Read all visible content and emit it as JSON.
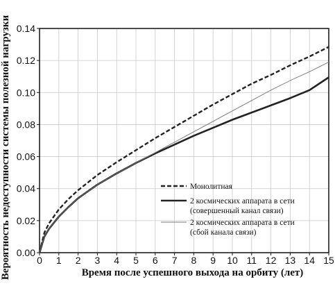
{
  "chart_data": {
    "type": "line",
    "title": "",
    "xlabel": "Время после успешного выхода на орбиту (лет)",
    "ylabel": "Вероятность недоступности системы полезной нагрузки",
    "xlim": [
      0,
      15
    ],
    "ylim": [
      0,
      0.14
    ],
    "x_ticks": [
      "0",
      "1",
      "2",
      "3",
      "4",
      "5",
      "6",
      "7",
      "8",
      "9",
      "10",
      "11",
      "12",
      "13",
      "14",
      "15"
    ],
    "y_ticks": [
      "0.00",
      "0.02",
      "0.04",
      "0.06",
      "0.08",
      "0.10",
      "0.12",
      "0.14"
    ],
    "grid": true,
    "legend_position": "lower-right",
    "x": [
      0,
      0.25,
      0.5,
      1,
      1.5,
      2,
      3,
      4,
      5,
      6,
      7,
      8,
      9,
      10,
      11,
      12,
      13,
      14,
      15
    ],
    "series": [
      {
        "name": "Монолитная",
        "style": "dashed",
        "color": "#222222",
        "values": [
          0.0,
          0.0125,
          0.0185,
          0.027,
          0.0335,
          0.039,
          0.0485,
          0.0565,
          0.064,
          0.0715,
          0.0785,
          0.0855,
          0.0925,
          0.099,
          0.1055,
          0.111,
          0.117,
          0.1225,
          0.1285
        ]
      },
      {
        "name": "2 космических аппарата в сети (совершенный канал связи)",
        "style": "solid-thick",
        "color": "#222222",
        "values": [
          0.0,
          0.01,
          0.015,
          0.0225,
          0.0285,
          0.034,
          0.0425,
          0.0495,
          0.056,
          0.062,
          0.0675,
          0.073,
          0.078,
          0.083,
          0.0875,
          0.092,
          0.0965,
          0.1015,
          0.1095
        ]
      },
      {
        "name": "2 космических аппарата в сети (сбой канала связи)",
        "style": "solid-thin",
        "color": "#777777",
        "values": [
          0.0,
          0.01,
          0.015,
          0.0225,
          0.0285,
          0.034,
          0.0425,
          0.0495,
          0.056,
          0.0625,
          0.069,
          0.0755,
          0.082,
          0.0885,
          0.095,
          0.1015,
          0.1075,
          0.113,
          0.119
        ]
      }
    ],
    "legend": [
      {
        "label": "Монолитная",
        "style": "dashed"
      },
      {
        "label": "2 космических аппарата в сети",
        "sublabel": "(совершенный канал связи)",
        "style": "solid-thick"
      },
      {
        "label": "2 космических аппарата в сети",
        "sublabel": "(сбой канала связи)",
        "style": "solid-thin"
      }
    ]
  }
}
